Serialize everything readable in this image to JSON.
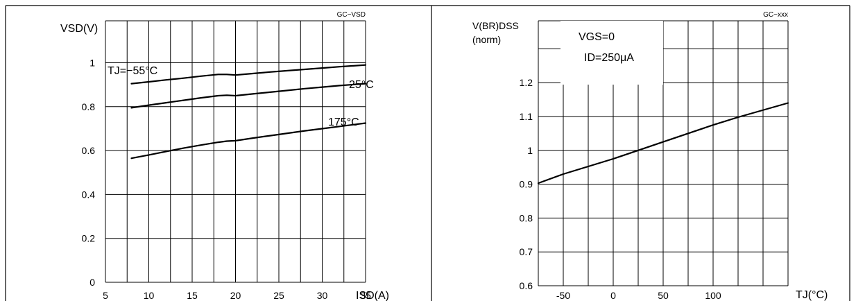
{
  "panels": {
    "left": {
      "code": "GC−VSD",
      "ylabel": "VSD(V)",
      "xlabel": "ISD(A)"
    },
    "right": {
      "code": "GC−xxx",
      "ylabel_line1": "V(BR)DSS",
      "ylabel_line2": "(norm)",
      "xlabel": "TJ(°C)",
      "anno_vgs": "VGS=0",
      "anno_id": "ID=250μA"
    }
  },
  "chart_data": [
    {
      "type": "line",
      "title": "",
      "xlabel": "ISD(A)",
      "ylabel": "VSD(V)",
      "xlim": [
        5,
        35
      ],
      "ylim": [
        0,
        1.1
      ],
      "x_ticks": [
        5,
        10,
        15,
        20,
        25,
        30,
        35
      ],
      "x_tick_labels": [
        "5",
        "10",
        "15",
        "20",
        "25",
        "30",
        "35"
      ],
      "y_ticks": [
        0,
        0.2,
        0.4,
        0.6,
        0.8,
        1
      ],
      "y_tick_labels": [
        "0",
        "0.2",
        "0.4",
        "0.6",
        "0.8",
        "1"
      ],
      "grid": true,
      "series": [
        {
          "name": "TJ=−55°C",
          "x": [
            8,
            10,
            12,
            14,
            16,
            18,
            19,
            20,
            22,
            24,
            26,
            28,
            30,
            32,
            35
          ],
          "y": [
            0.905,
            0.913,
            0.922,
            0.93,
            0.939,
            0.947,
            0.947,
            0.944,
            0.951,
            0.958,
            0.964,
            0.97,
            0.976,
            0.982,
            0.99
          ]
        },
        {
          "name": "25°C",
          "x": [
            8,
            10,
            12,
            14,
            16,
            18,
            19,
            20,
            22,
            24,
            26,
            28,
            30,
            32,
            35
          ],
          "y": [
            0.795,
            0.807,
            0.818,
            0.829,
            0.84,
            0.85,
            0.852,
            0.85,
            0.858,
            0.866,
            0.874,
            0.882,
            0.889,
            0.896,
            0.905
          ]
        },
        {
          "name": "175°C",
          "x": [
            8,
            10,
            12,
            14,
            16,
            18,
            19,
            20,
            22,
            24,
            26,
            28,
            30,
            32,
            35
          ],
          "y": [
            0.565,
            0.58,
            0.596,
            0.611,
            0.625,
            0.638,
            0.643,
            0.645,
            0.657,
            0.668,
            0.679,
            0.69,
            0.7,
            0.71,
            0.725
          ]
        }
      ]
    },
    {
      "type": "line",
      "title": "",
      "xlabel": "TJ(°C)",
      "ylabel": "V(BR)DSS (norm)",
      "xlim": [
        -75,
        175
      ],
      "ylim": [
        0.6,
        1.4
      ],
      "x_ticks": [
        -50,
        0,
        50,
        100
      ],
      "x_tick_labels": [
        "-50",
        "0",
        "50",
        "100"
      ],
      "y_ticks": [
        0.6,
        0.7,
        0.8,
        0.9,
        1,
        1.1,
        1.2
      ],
      "y_tick_labels": [
        "0.6",
        "0.7",
        "0.8",
        "0.9",
        "1",
        "1.1",
        "1.2"
      ],
      "grid": true,
      "series": [
        {
          "name": "",
          "x": [
            -75,
            -50,
            0,
            25,
            50,
            100,
            125,
            175
          ],
          "y": [
            0.903,
            0.93,
            0.975,
            1.0,
            1.025,
            1.075,
            1.098,
            1.14
          ]
        }
      ]
    }
  ]
}
